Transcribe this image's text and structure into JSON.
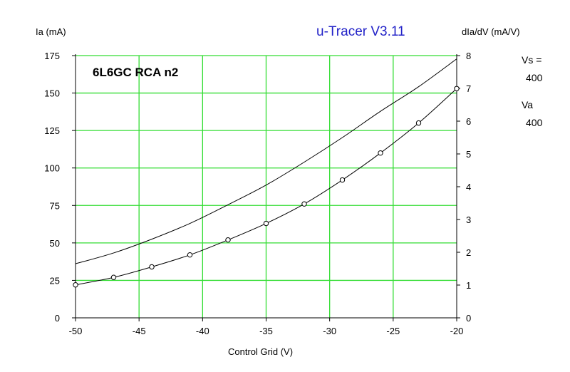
{
  "header": {
    "brand": "u-Tracer V3.11"
  },
  "side_params": {
    "vs_label": "Vs =",
    "vs_value": "400",
    "va_label": "Va",
    "va_value": "400"
  },
  "chart_data": {
    "type": "line",
    "title": "6L6GC RCA n2",
    "xlabel": "Control Grid (V)",
    "ylabel": "Ia (mA)",
    "y2label": "dIa/dV (mA/V)",
    "xlim": [
      -50,
      -20
    ],
    "ylim": [
      0,
      175
    ],
    "y2lim": [
      0,
      8
    ],
    "xticks": [
      -50,
      -45,
      -40,
      -35,
      -30,
      -25,
      -20
    ],
    "yticks": [
      0,
      25,
      50,
      75,
      100,
      125,
      150,
      175
    ],
    "y2ticks": [
      0,
      1,
      2,
      3,
      4,
      5,
      6,
      7,
      8
    ],
    "grid": true,
    "grid_color": "#33dd33",
    "series": [
      {
        "axis": "left",
        "markers": true,
        "x": [
          -50,
          -47,
          -44,
          -41,
          -38,
          -35,
          -32,
          -29,
          -26,
          -23,
          -20
        ],
        "values": [
          22,
          27,
          34,
          42,
          52,
          63,
          76,
          92,
          110,
          130,
          153
        ]
      },
      {
        "axis": "right",
        "markers": false,
        "x": [
          -50,
          -47,
          -44,
          -41,
          -38,
          -35,
          -32,
          -29,
          -26,
          -23,
          -20
        ],
        "values": [
          1.65,
          1.98,
          2.4,
          2.88,
          3.45,
          4.05,
          4.75,
          5.5,
          6.3,
          7.05,
          7.9
        ]
      }
    ]
  }
}
